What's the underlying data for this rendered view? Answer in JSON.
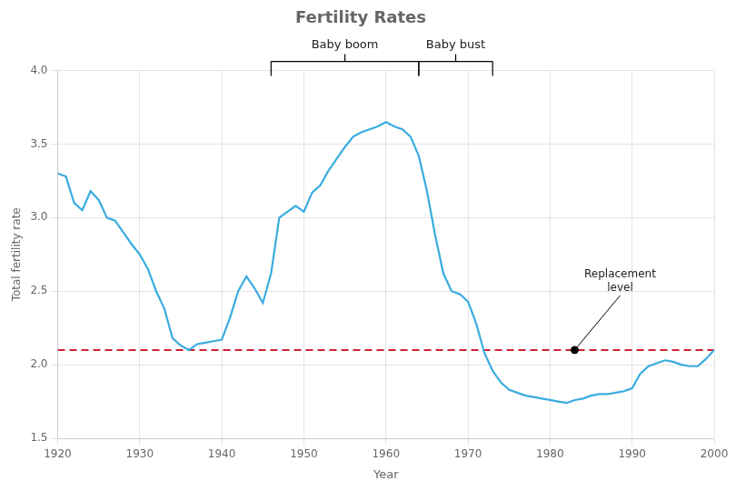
{
  "chart_data": {
    "type": "line",
    "title": "Fertility Rates",
    "x_label": "Year",
    "y_label": "Total fertility rate",
    "x": [
      1920,
      1921,
      1922,
      1923,
      1924,
      1925,
      1926,
      1927,
      1928,
      1929,
      1930,
      1931,
      1932,
      1933,
      1934,
      1935,
      1936,
      1937,
      1938,
      1939,
      1940,
      1941,
      1942,
      1943,
      1944,
      1945,
      1946,
      1947,
      1948,
      1949,
      1950,
      1951,
      1952,
      1953,
      1954,
      1955,
      1956,
      1957,
      1958,
      1959,
      1960,
      1961,
      1962,
      1963,
      1964,
      1965,
      1966,
      1967,
      1968,
      1969,
      1970,
      1971,
      1972,
      1973,
      1974,
      1975,
      1976,
      1977,
      1978,
      1979,
      1980,
      1981,
      1982,
      1983,
      1984,
      1985,
      1986,
      1987,
      1988,
      1989,
      1990,
      1991,
      1992,
      1993,
      1994,
      1995,
      1996,
      1997,
      1998,
      1999,
      2000
    ],
    "values": [
      3.3,
      3.28,
      3.1,
      3.05,
      3.18,
      3.12,
      3.0,
      2.98,
      2.9,
      2.82,
      2.75,
      2.65,
      2.5,
      2.38,
      2.18,
      2.13,
      2.1,
      2.14,
      2.15,
      2.16,
      2.17,
      2.32,
      2.5,
      2.6,
      2.52,
      2.42,
      2.62,
      3.0,
      3.04,
      3.08,
      3.04,
      3.17,
      3.22,
      3.32,
      3.4,
      3.48,
      3.55,
      3.58,
      3.6,
      3.62,
      3.65,
      3.62,
      3.6,
      3.55,
      3.42,
      3.18,
      2.88,
      2.62,
      2.5,
      2.48,
      2.43,
      2.28,
      2.08,
      1.96,
      1.88,
      1.83,
      1.81,
      1.79,
      1.78,
      1.77,
      1.76,
      1.75,
      1.74,
      1.76,
      1.77,
      1.79,
      1.8,
      1.8,
      1.81,
      1.82,
      1.84,
      1.94,
      1.99,
      2.01,
      2.03,
      2.02,
      2.0,
      1.99,
      1.99,
      2.04,
      2.1
    ],
    "color": "#3AACE0",
    "xlim": [
      1920,
      2000
    ],
    "xticks": [
      1920,
      1930,
      1940,
      1950,
      1960,
      1970,
      1980,
      1990,
      2000
    ],
    "ylim": [
      1.5,
      4.0
    ],
    "yticks": [
      1.5,
      {
        "value": 2.0,
        "label": "2.0"
      },
      2.5,
      {
        "value": 3.0,
        "label": "3.0"
      },
      3.5,
      {
        "value": 4.0,
        "label": "4.0"
      }
    ],
    "grid": true,
    "annotations": [
      {
        "type": "hline",
        "y": 2.1,
        "color": "#CC2233",
        "line_style": "dashed"
      },
      {
        "type": "point",
        "x": 1983,
        "y": 2.1,
        "color": "#000000",
        "text": "Replacement\nlevel"
      },
      {
        "type": "bracket",
        "x_start": 1946,
        "x_end": 1964,
        "text": "Baby boom"
      },
      {
        "type": "bracket",
        "x_start": 1964,
        "x_end": 1973,
        "text": "Baby bust"
      }
    ]
  }
}
